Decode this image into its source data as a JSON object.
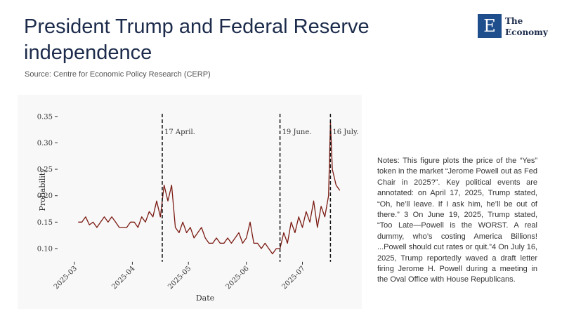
{
  "header": {
    "title_lines": [
      "President Trump and Federal Reserve",
      "independence"
    ],
    "source": "Source: Centre for Economic Policy Research (CERP)"
  },
  "logo": {
    "mark": "E",
    "line1": "The",
    "line2": "Economy"
  },
  "notes": "Notes: This figure plots the price of the “Yes” token in the market “Jerome Powell out as Fed Chair in 2025?”. Key political events are annotated: on April 17, 2025, Trump stated, “Oh, he’ll leave. If I ask him, he’ll be out of there.” 3 On June 19, 2025, Trump stated, “Too Late—Powell is the WORST. A real dummy, who’s costing America Billions! ...Powell should cut rates or quit.”4 On July 16, 2025, Trump reportedly waved a draft letter firing Jerome H. Powell during a meeting in the Oval Office with House Republicans.",
  "chart_data": {
    "type": "line",
    "xlabel": "Date",
    "ylabel": "Probability",
    "color": "#7b1a12",
    "x": [
      "2025-03-03",
      "2025-03-05",
      "2025-03-07",
      "2025-03-09",
      "2025-03-11",
      "2025-03-13",
      "2025-03-15",
      "2025-03-17",
      "2025-03-19",
      "2025-03-21",
      "2025-03-23",
      "2025-03-25",
      "2025-03-27",
      "2025-03-29",
      "2025-03-31",
      "2025-04-02",
      "2025-04-04",
      "2025-04-06",
      "2025-04-08",
      "2025-04-10",
      "2025-04-12",
      "2025-04-14",
      "2025-04-16",
      "2025-04-18",
      "2025-04-20",
      "2025-04-22",
      "2025-04-24",
      "2025-04-26",
      "2025-04-28",
      "2025-04-30",
      "2025-05-02",
      "2025-05-04",
      "2025-05-06",
      "2025-05-08",
      "2025-05-10",
      "2025-05-12",
      "2025-05-14",
      "2025-05-16",
      "2025-05-18",
      "2025-05-20",
      "2025-05-22",
      "2025-05-24",
      "2025-05-26",
      "2025-05-28",
      "2025-05-30",
      "2025-06-01",
      "2025-06-03",
      "2025-06-05",
      "2025-06-07",
      "2025-06-09",
      "2025-06-11",
      "2025-06-13",
      "2025-06-15",
      "2025-06-17",
      "2025-06-19",
      "2025-06-21",
      "2025-06-23",
      "2025-06-25",
      "2025-06-27",
      "2025-06-29",
      "2025-07-01",
      "2025-07-03",
      "2025-07-05",
      "2025-07-07",
      "2025-07-09",
      "2025-07-11",
      "2025-07-13",
      "2025-07-15",
      "2025-07-16",
      "2025-07-17",
      "2025-07-19",
      "2025-07-21"
    ],
    "values": [
      0.15,
      0.15,
      0.16,
      0.145,
      0.15,
      0.14,
      0.15,
      0.16,
      0.15,
      0.16,
      0.15,
      0.14,
      0.14,
      0.14,
      0.15,
      0.15,
      0.14,
      0.16,
      0.15,
      0.17,
      0.16,
      0.19,
      0.16,
      0.22,
      0.19,
      0.22,
      0.14,
      0.13,
      0.15,
      0.13,
      0.14,
      0.12,
      0.13,
      0.14,
      0.12,
      0.11,
      0.11,
      0.12,
      0.11,
      0.11,
      0.12,
      0.11,
      0.12,
      0.13,
      0.11,
      0.12,
      0.15,
      0.11,
      0.11,
      0.1,
      0.11,
      0.1,
      0.09,
      0.1,
      0.1,
      0.13,
      0.11,
      0.15,
      0.13,
      0.16,
      0.14,
      0.17,
      0.15,
      0.19,
      0.14,
      0.18,
      0.16,
      0.2,
      0.34,
      0.25,
      0.22,
      0.21
    ],
    "xlim": [
      "2025-02-20",
      "2025-07-26"
    ],
    "xticks": [
      "2025-03",
      "2025-04",
      "2025-05",
      "2025-06",
      "2025-07"
    ],
    "ylim": [
      0.075,
      0.355
    ],
    "yticks": [
      {
        "value": 0.1,
        "label": "0.10"
      },
      0.15,
      {
        "value": 0.2,
        "label": "0.20"
      },
      0.25,
      {
        "value": 0.3,
        "label": "0.30"
      },
      0.35
    ],
    "annotations": [
      {
        "x": "2025-04-17",
        "label": "17 April."
      },
      {
        "x": "2025-06-19",
        "label": "19 June."
      },
      {
        "x": "2025-07-16",
        "label": "16 July."
      }
    ]
  }
}
